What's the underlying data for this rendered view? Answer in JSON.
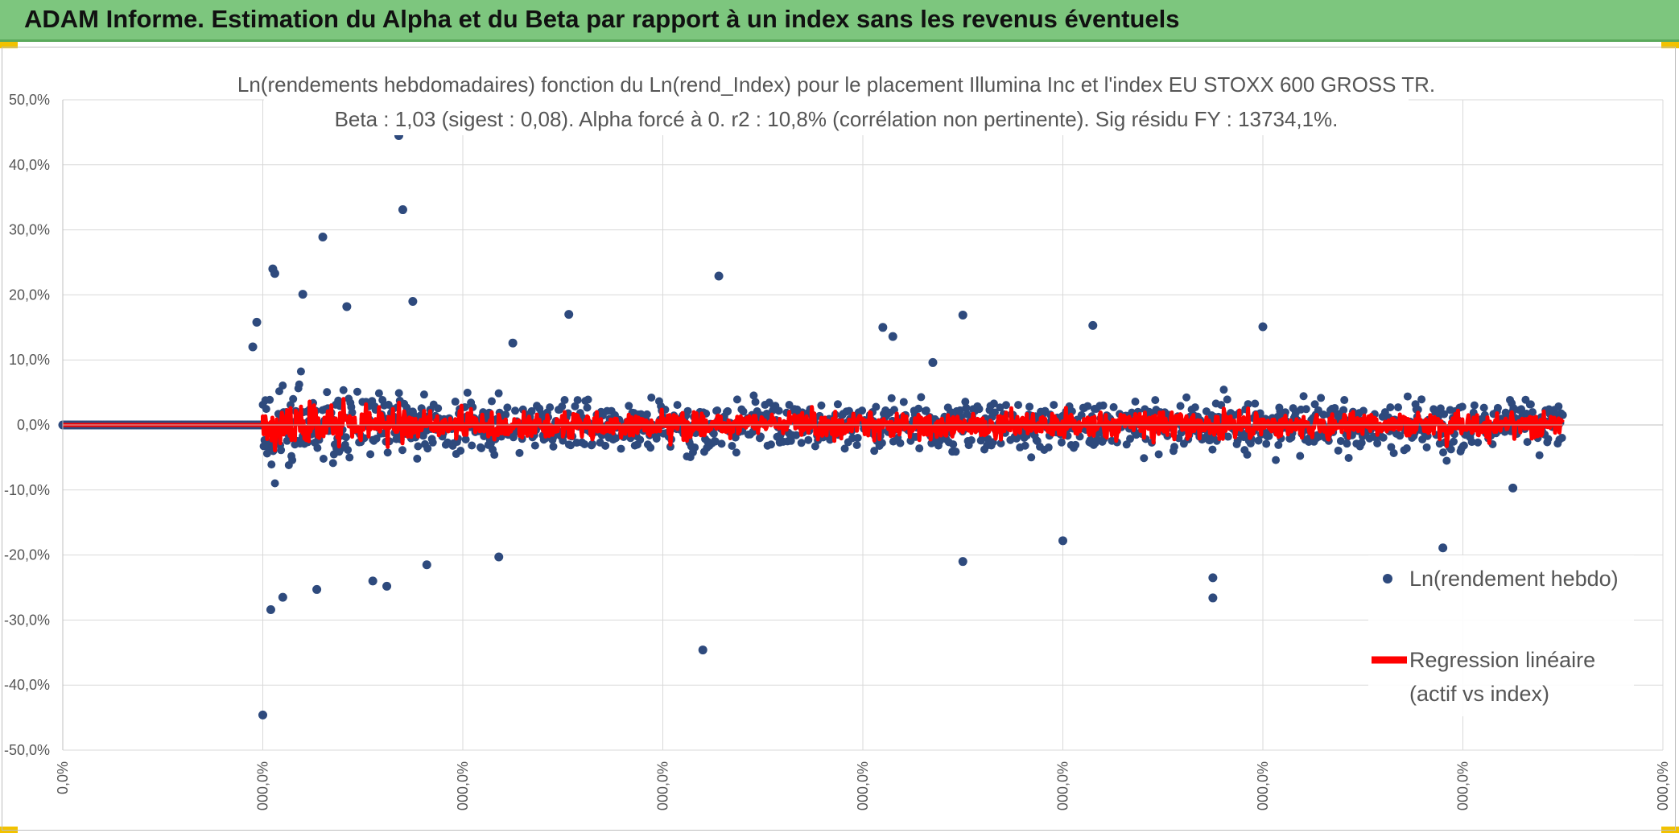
{
  "header": {
    "title": "ADAM Informe. Estimation du Alpha et du Beta par rapport à un index sans les revenus éventuels"
  },
  "colors": {
    "header_bg": "#7dc67e",
    "accent": "#f2c200",
    "points": "#2e4a7d",
    "regression": "#ff0000",
    "grid": "#d9d9d9"
  },
  "chart_data": {
    "type": "scatter",
    "title": [
      "Ln(rendements hebdomadaires) fonction du Ln(rend_Index) pour le placement Illumina Inc et l'index EU STOXX 600 GROSS TR.",
      "Beta : 1,03 (sigest : 0,08). Alpha forcé à 0. r2 : 10,8% (corrélation non pertinente). Sig résidu FY : 13734,1%."
    ],
    "ylim": [
      -50,
      50
    ],
    "y_ticks": [
      "50,0%",
      "40,0%",
      "30,0%",
      "20,0%",
      "10,0%",
      "0,0%",
      "-10,0%",
      "-20,0%",
      "-30,0%",
      "-40,0%",
      "-50,0%"
    ],
    "x_ticks": [
      "0,0%",
      "000,0%",
      "000,0%",
      "000,0%",
      "000,0%",
      "000,0%",
      "000,0%",
      "000,0%",
      "000,0%"
    ],
    "xlim": [
      0,
      8
    ],
    "zero_segment_end": 1.0,
    "data_end": 7.5,
    "series": [
      {
        "name": "Ln(rendement hebdo)",
        "kind": "points",
        "color": "#2e4a7d",
        "notable_points": [
          [
            0.95,
            12.0
          ],
          [
            0.97,
            15.8
          ],
          [
            1.0,
            -44.6
          ],
          [
            1.04,
            -28.4
          ],
          [
            1.05,
            24.0
          ],
          [
            1.06,
            23.3
          ],
          [
            1.1,
            -26.5
          ],
          [
            1.2,
            20.1
          ],
          [
            1.27,
            -25.3
          ],
          [
            1.3,
            28.9
          ],
          [
            1.42,
            18.2
          ],
          [
            1.55,
            -24.0
          ],
          [
            1.62,
            -24.8
          ],
          [
            1.68,
            44.5
          ],
          [
            1.7,
            33.1
          ],
          [
            1.75,
            19.0
          ],
          [
            1.82,
            -21.5
          ],
          [
            2.18,
            -20.3
          ],
          [
            2.25,
            12.6
          ],
          [
            2.53,
            17.0
          ],
          [
            3.2,
            -34.6
          ],
          [
            3.28,
            22.9
          ],
          [
            4.1,
            15.0
          ],
          [
            4.15,
            13.6
          ],
          [
            4.35,
            9.6
          ],
          [
            4.5,
            -21.0
          ],
          [
            4.5,
            16.9
          ],
          [
            5.0,
            -17.8
          ],
          [
            5.15,
            15.3
          ],
          [
            5.75,
            -26.6
          ],
          [
            5.75,
            -23.5
          ],
          [
            6.0,
            15.1
          ],
          [
            6.9,
            -18.9
          ],
          [
            7.25,
            -9.7
          ]
        ]
      },
      {
        "name": "Regression linéaire (actif vs index)",
        "kind": "line",
        "color": "#ff0000",
        "beta": 1.03,
        "alpha": 0
      }
    ],
    "legend": {
      "position": "right",
      "entries": [
        "Ln(rendement hebdo)",
        "Regression linéaire",
        "(actif vs index)"
      ]
    }
  }
}
